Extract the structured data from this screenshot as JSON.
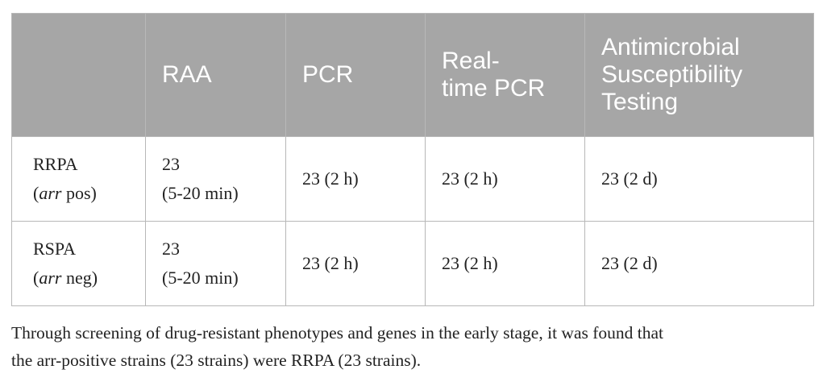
{
  "table": {
    "headers": {
      "corner": "",
      "raa": "RAA",
      "pcr": "PCR",
      "realtime_line1": "Real-",
      "realtime_line2": "time PCR",
      "ast_line1": "Antimicrobial",
      "ast_line2": "Susceptibility",
      "ast_line3": "Testing"
    },
    "rows": [
      {
        "label": "RRPA",
        "gene": "arr",
        "status": " pos)",
        "raa_count": "23",
        "raa_time": "(5-20 min)",
        "pcr": "23 (2 h)",
        "realtime_pcr": "23 (2 h)",
        "ast": "23 (2 d)"
      },
      {
        "label": "RSPA",
        "gene": "arr",
        "status": " neg)",
        "raa_count": "23",
        "raa_time": "(5-20 min)",
        "pcr": "23 (2 h)",
        "realtime_pcr": "23 (2 h)",
        "ast": "23 (2 d)"
      }
    ],
    "paren_open": "("
  },
  "footnote": {
    "line1": "Through screening of drug-resistant phenotypes and genes in the early stage, it was found that",
    "line2": "the arr-positive strains (23 strains) were RRPA (23 strains)."
  }
}
